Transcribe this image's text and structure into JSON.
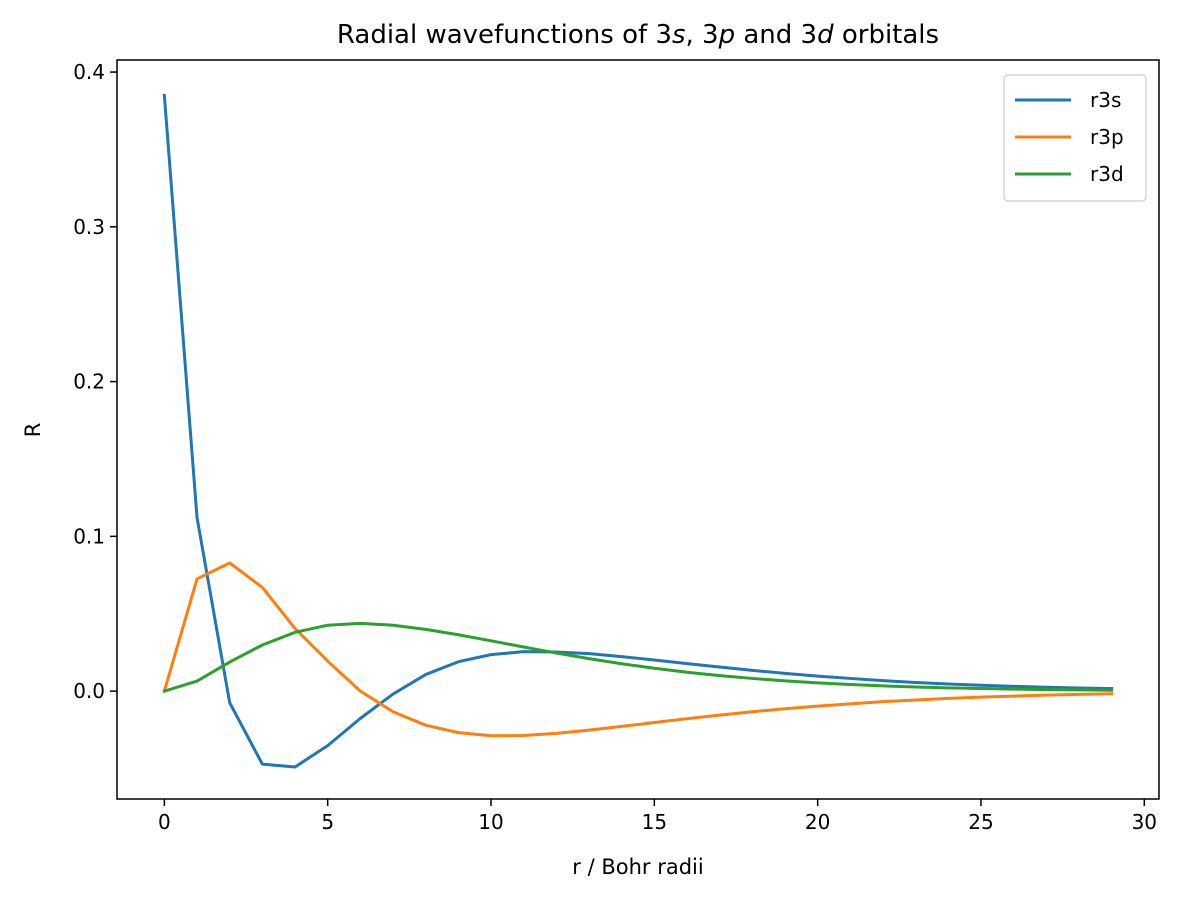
{
  "chart_data": {
    "type": "line",
    "title_parts": [
      {
        "text": "Radial wavefunctions of 3",
        "italic": false
      },
      {
        "text": "s",
        "italic": true
      },
      {
        "text": ", 3",
        "italic": false
      },
      {
        "text": "p",
        "italic": true
      },
      {
        "text": " and 3",
        "italic": false
      },
      {
        "text": "d",
        "italic": true
      },
      {
        "text": " orbitals",
        "italic": false
      }
    ],
    "xlabel": "r / Bohr radii",
    "ylabel": "R",
    "xlim": [
      -1.45,
      30.45
    ],
    "ylim": [
      -0.0697,
      0.4078
    ],
    "xticks": [
      0,
      5,
      10,
      15,
      20,
      25,
      30
    ],
    "xtick_labels": [
      "0",
      "5",
      "10",
      "15",
      "20",
      "25",
      "30"
    ],
    "yticks": [
      0.0,
      0.1,
      0.2,
      0.3,
      0.4
    ],
    "ytick_labels": [
      "0.0",
      "0.1",
      "0.2",
      "0.3",
      "0.4"
    ],
    "grid": false,
    "legend_position": "top-right",
    "x": [
      0,
      1,
      2,
      3,
      4,
      5,
      6,
      7,
      8,
      9,
      10,
      11,
      12,
      13,
      14,
      15,
      16,
      17,
      18,
      19,
      20,
      21,
      22,
      23,
      24,
      25,
      26,
      27,
      28,
      29
    ],
    "series": [
      {
        "name": "r3s",
        "color": "#1f77b4",
        "values": [
          0.3849,
          0.1121,
          -0.0075,
          -0.0472,
          -0.049,
          -0.0352,
          -0.0176,
          -0.0019,
          0.0107,
          0.019,
          0.0236,
          0.0255,
          0.0253,
          0.0242,
          0.0223,
          0.0201,
          0.0178,
          0.0156,
          0.0134,
          0.0115,
          0.0097,
          0.0082,
          0.0068,
          0.0056,
          0.0046,
          0.0038,
          0.0031,
          0.0025,
          0.002,
          0.0016
        ]
      },
      {
        "name": "r3p",
        "color": "#ff7f0e",
        "values": [
          0.0,
          0.0725,
          0.0828,
          0.067,
          0.0405,
          0.0194,
          0.0,
          -0.0133,
          -0.022,
          -0.0268,
          -0.0288,
          -0.0287,
          -0.0273,
          -0.0252,
          -0.0228,
          -0.0203,
          -0.0178,
          -0.0155,
          -0.0133,
          -0.0114,
          -0.0097,
          -0.0082,
          -0.0068,
          -0.0057,
          -0.0047,
          -0.0039,
          -0.0032,
          -0.0026,
          -0.0021,
          -0.0017
        ]
      },
      {
        "name": "r3d",
        "color": "#2ca02c",
        "values": [
          0.0,
          0.0065,
          0.0188,
          0.0298,
          0.038,
          0.0426,
          0.0438,
          0.0426,
          0.0399,
          0.0364,
          0.0325,
          0.0285,
          0.0246,
          0.021,
          0.0177,
          0.0148,
          0.0122,
          0.01,
          0.0082,
          0.0066,
          0.0053,
          0.0043,
          0.0034,
          0.0027,
          0.0021,
          0.0017,
          0.0013,
          0.001,
          0.0008,
          0.0006
        ]
      }
    ]
  }
}
